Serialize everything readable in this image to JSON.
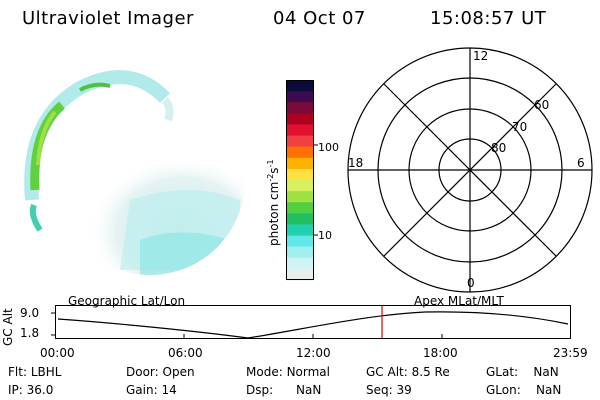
{
  "header": {
    "instrument": "Ultraviolet Imager",
    "date": "04 Oct 07",
    "time": "15:08:57 UT"
  },
  "colorbar": {
    "label_main": "photon cm",
    "label_exp1": "-2",
    "label_s": "s",
    "label_exp2": "-1",
    "ticks": [
      "100",
      "10"
    ],
    "colors": [
      "#0a0a3c",
      "#3c0a50",
      "#7a0a3a",
      "#b00020",
      "#e01030",
      "#f04040",
      "#ff7000",
      "#ffb000",
      "#ffe040",
      "#d8f060",
      "#a0e040",
      "#50d040",
      "#20c060",
      "#20d0b0",
      "#60e8e8",
      "#a0f0f0",
      "#d0f4f4",
      "#e8eeee"
    ]
  },
  "polar_plot": {
    "mlt_labels": {
      "top": "12",
      "left": "18",
      "right": "6",
      "bottom": "0"
    },
    "lat_labels": [
      "60",
      "70",
      "80"
    ]
  },
  "altitude_plot": {
    "axis_label": "GC Alt",
    "y_ticks": [
      "9.0",
      "1.8"
    ],
    "left_title": "Geographic Lat/Lon",
    "right_title": "Apex MLat/MLT",
    "x_ticks": [
      "00:00",
      "06:00",
      "12:00",
      "18:00",
      "23:59"
    ],
    "marker_color": "#e00000"
  },
  "status": {
    "row1": [
      {
        "label": "Flt:",
        "value": "LBHL"
      },
      {
        "label": "Door:",
        "value": "Open"
      },
      {
        "label": "Mode:",
        "value": "Normal"
      },
      {
        "label": "GC Alt:",
        "value": "8.5 Re"
      },
      {
        "label": "GLat:",
        "value": "NaN"
      }
    ],
    "row2": [
      {
        "label": "IP:",
        "value": "36.0"
      },
      {
        "label": "Gain:",
        "value": "14"
      },
      {
        "label": "Dsp:",
        "value": "NaN"
      },
      {
        "label": "Seq:",
        "value": "39"
      },
      {
        "label": "GLon:",
        "value": "NaN"
      }
    ]
  }
}
